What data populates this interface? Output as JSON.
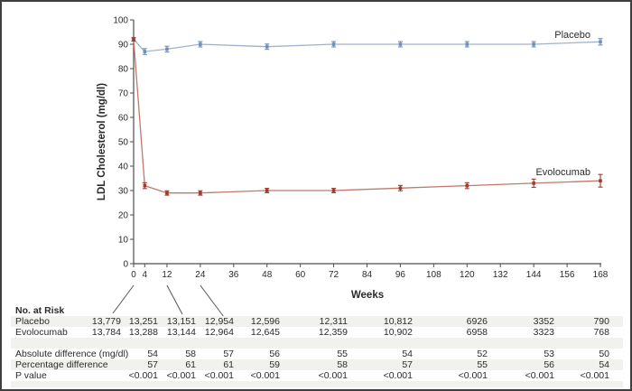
{
  "figure": {
    "background": "#ffffff",
    "border_color": "#3f3f3f"
  },
  "chart_data": {
    "type": "line",
    "title": "",
    "xlabel": "Weeks",
    "ylabel": "LDL Cholesterol (mg/dl)",
    "xlim": [
      0,
      168
    ],
    "ylim": [
      0,
      100
    ],
    "x_ticks": [
      0,
      4,
      12,
      24,
      36,
      48,
      60,
      72,
      84,
      96,
      108,
      120,
      132,
      144,
      156,
      168
    ],
    "y_ticks": [
      0,
      10,
      20,
      30,
      40,
      50,
      60,
      70,
      80,
      90,
      100
    ],
    "grid": false,
    "legend": "inline-labels-right",
    "x": [
      0,
      4,
      12,
      24,
      48,
      72,
      96,
      120,
      144,
      168
    ],
    "series": [
      {
        "name": "Placebo",
        "line_color": "#9db3cd",
        "marker_color": "#6d8fb8",
        "values": [
          92,
          87,
          88,
          90,
          89,
          90,
          90,
          90,
          90,
          91
        ],
        "errors": [
          0.7,
          1.2,
          1.2,
          1.1,
          1.1,
          1.1,
          1.1,
          1.1,
          1.1,
          1.3
        ]
      },
      {
        "name": "Evolocumab",
        "line_color": "#c0796a",
        "marker_color": "#a03a2c",
        "values": [
          92,
          32,
          29,
          29,
          30,
          30,
          31,
          32,
          33,
          34
        ],
        "errors": [
          0.7,
          1.2,
          0.9,
          0.9,
          0.9,
          0.9,
          1.1,
          1.2,
          1.7,
          2.6
        ]
      }
    ]
  },
  "risk_table": {
    "title": "No. at Risk",
    "weeks": [
      0,
      4,
      12,
      24,
      48,
      72,
      96,
      120,
      144,
      168
    ],
    "rows": [
      {
        "label": "Placebo",
        "values": [
          "13,779",
          "13,251",
          "13,151",
          "12,954",
          "12,596",
          "12,311",
          "10,812",
          "6926",
          "3352",
          "790"
        ]
      },
      {
        "label": "Evolocumab",
        "values": [
          "13,784",
          "13,288",
          "13,144",
          "12,964",
          "12,645",
          "12,359",
          "10,902",
          "6958",
          "3323",
          "768"
        ]
      }
    ]
  },
  "difference_table": {
    "weeks": [
      4,
      12,
      24,
      48,
      72,
      96,
      120,
      144,
      168
    ],
    "rows": [
      {
        "label": "Absolute difference (mg/dl)",
        "values": [
          "54",
          "58",
          "57",
          "56",
          "55",
          "54",
          "52",
          "53",
          "50"
        ]
      },
      {
        "label": "Percentage difference",
        "values": [
          "57",
          "61",
          "61",
          "59",
          "58",
          "57",
          "55",
          "56",
          "54"
        ]
      },
      {
        "label": "P value",
        "values": [
          "<0.001",
          "<0.001",
          "<0.001",
          "<0.001",
          "<0.001",
          "<0.001",
          "<0.001",
          "<0.001",
          "<0.001"
        ]
      }
    ]
  }
}
